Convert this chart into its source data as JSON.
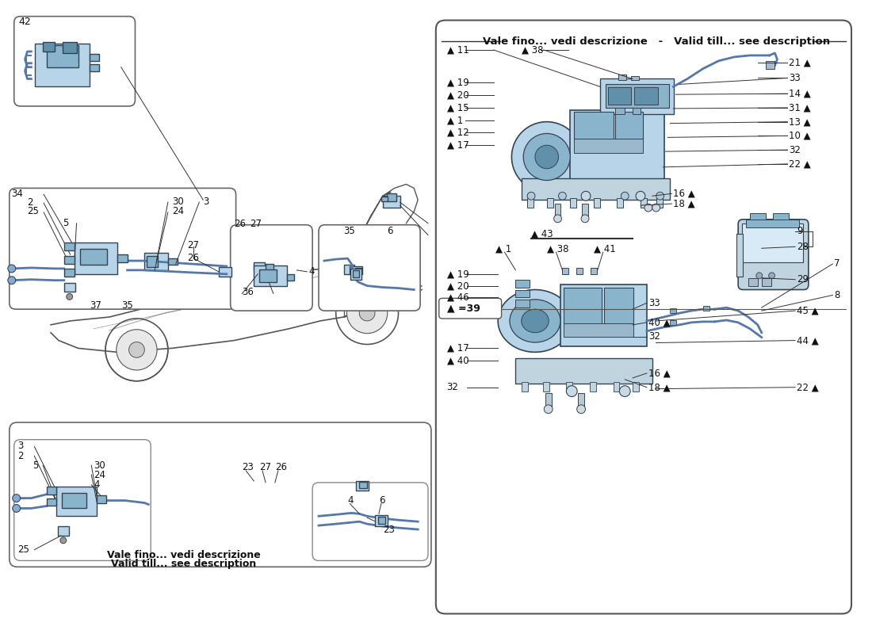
{
  "bg_color": "#ffffff",
  "light_blue": "#b8d4e8",
  "medium_blue": "#8ab4cc",
  "dark_blue": "#6090aa",
  "steel_blue": "#9ab8cc",
  "bracket_color": "#c0d4e0",
  "outline_color": "#333333",
  "car_outline": "#555555",
  "box_ec": "#555555",
  "leader_color": "#333333",
  "hose_color": "#5577aa",
  "top_header": "Vale fino... vedi descrizione   -   Valid till... see description",
  "bottom_note1": "Vale fino... vedi descrizione",
  "bottom_note2": "Valid till... see description",
  "legend": "▲ =39"
}
